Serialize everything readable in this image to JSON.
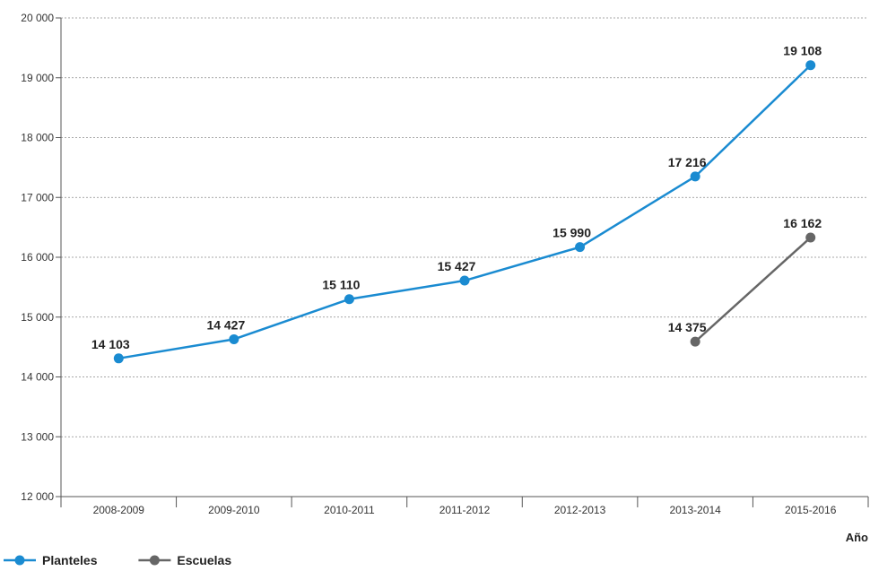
{
  "chart_data": {
    "type": "line",
    "categories": [
      "2008-2009",
      "2009-2010",
      "2010-2011",
      "2011-2012",
      "2012-2013",
      "2013-2014",
      "2015-2016"
    ],
    "series": [
      {
        "name": "Planteles",
        "color": "#1a8bd1",
        "values": [
          14103,
          14427,
          15110,
          15427,
          15990,
          17216,
          19108
        ],
        "plot_values": [
          14310,
          14630,
          15300,
          15610,
          16170,
          17350,
          19210
        ],
        "labels": [
          "14 103",
          "14 427",
          "15 110",
          "15 427",
          "15 990",
          "17 216",
          "19 108"
        ],
        "label_position": "above"
      },
      {
        "name": "Escuelas",
        "color": "#666666",
        "values": [
          null,
          null,
          null,
          null,
          null,
          14375,
          16162
        ],
        "plot_values": [
          null,
          null,
          null,
          null,
          null,
          14590,
          16330
        ],
        "labels": [
          null,
          null,
          null,
          null,
          null,
          "14 375",
          "16 162"
        ],
        "label_position": [
          "below",
          "above"
        ]
      }
    ],
    "xlabel": "Año",
    "ylabel": "",
    "ylim": [
      12000,
      20000
    ],
    "yticks": [
      12000,
      13000,
      14000,
      15000,
      16000,
      17000,
      18000,
      19000,
      20000
    ],
    "ytick_labels": [
      "12 000",
      "13 000",
      "14 000",
      "15 000",
      "16 000",
      "17 000",
      "18 000",
      "19 000",
      "20 000"
    ],
    "grid": "horizontal-dashed",
    "legend": "bottom-left"
  }
}
